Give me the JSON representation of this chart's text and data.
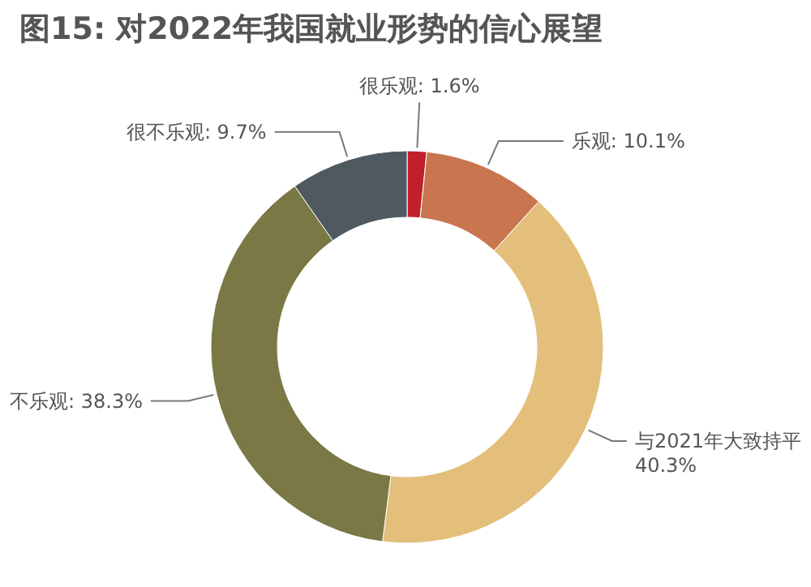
{
  "chart_data": {
    "type": "donut",
    "title": "图15: 对2022年我国就业形势的信心展望",
    "categories": [
      "很乐观",
      "乐观",
      "与2021年大致持平",
      "不乐观",
      "很不乐观"
    ],
    "values": [
      1.6,
      10.1,
      40.3,
      38.3,
      9.7
    ],
    "value_labels": [
      "1.6%",
      "10.1%",
      "40.3%",
      "38.3%",
      "9.7%"
    ],
    "colors": [
      "#c0202a",
      "#c97550",
      "#e3bf7b",
      "#7a7844",
      "#4f5a60"
    ]
  }
}
